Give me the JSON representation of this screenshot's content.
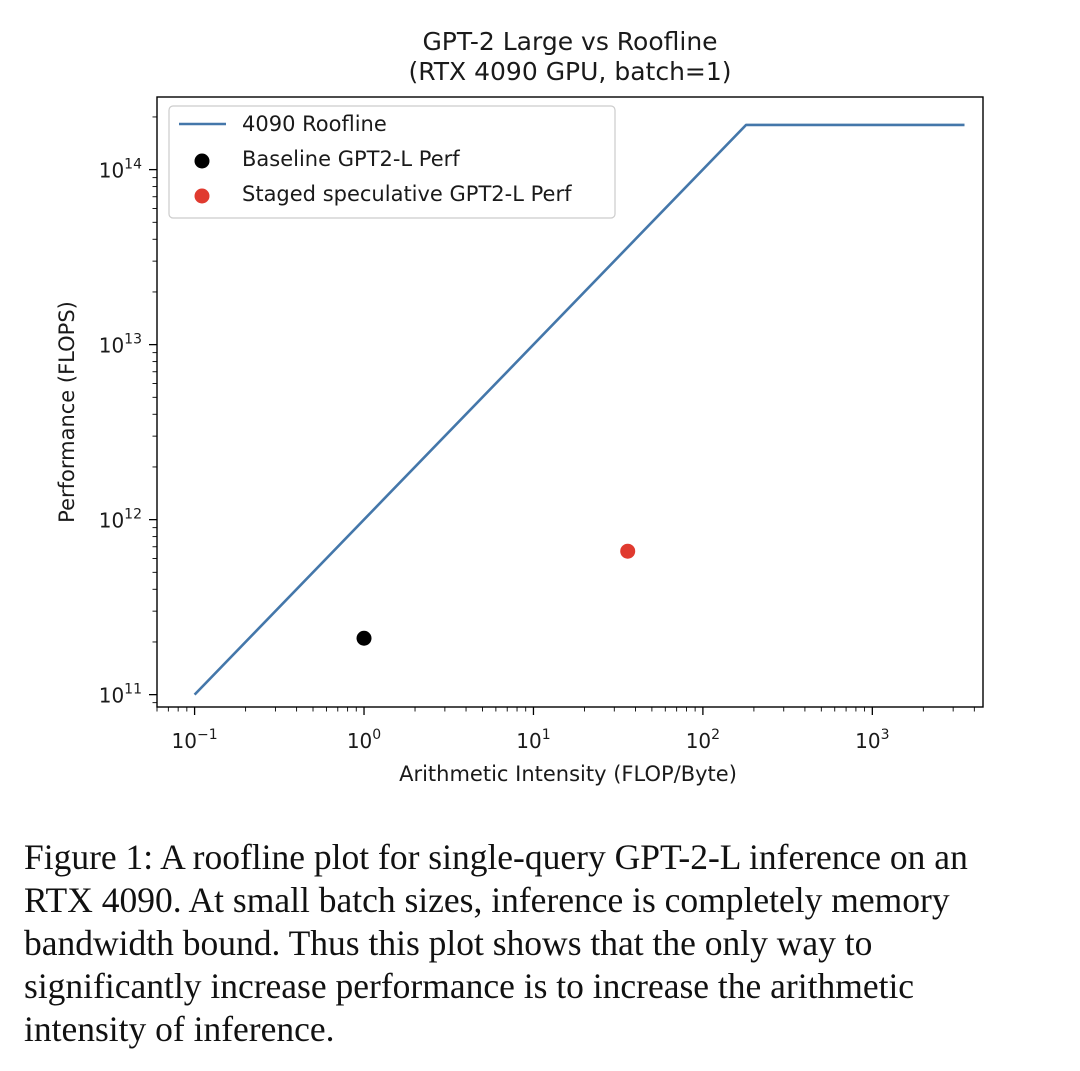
{
  "chart_data": {
    "type": "line",
    "title": [
      "GPT-2 Large vs Roofline",
      "(RTX 4090 GPU, batch=1)"
    ],
    "xlabel": "Arithmetic Intensity (FLOP/Byte)",
    "ylabel": "Performance (FLOPS)",
    "xscale": "log",
    "yscale": "log",
    "xlim": [
      0.06,
      4500
    ],
    "ylim": [
      85000000000.0,
      260000000000000.0
    ],
    "x_ticks": [
      {
        "value": 0.1,
        "base": "10",
        "exp": "−1"
      },
      {
        "value": 1,
        "base": "10",
        "exp": "0"
      },
      {
        "value": 10,
        "base": "10",
        "exp": "1"
      },
      {
        "value": 100,
        "base": "10",
        "exp": "2"
      },
      {
        "value": 1000,
        "base": "10",
        "exp": "3"
      }
    ],
    "y_ticks": [
      {
        "value": 100000000000.0,
        "base": "10",
        "exp": "11"
      },
      {
        "value": 1000000000000.0,
        "base": "10",
        "exp": "12"
      },
      {
        "value": 10000000000000.0,
        "base": "10",
        "exp": "13"
      },
      {
        "value": 100000000000000.0,
        "base": "10",
        "exp": "14"
      }
    ],
    "series": [
      {
        "name": "4090 Roofline",
        "kind": "line",
        "color": "#4477aa",
        "x": [
          0.1,
          180,
          3500
        ],
        "y": [
          100000000000.0,
          180000000000000.0,
          180000000000000.0
        ]
      },
      {
        "name": "Baseline GPT2-L Perf",
        "kind": "point",
        "color": "#000000",
        "x": [
          1.0
        ],
        "y": [
          210000000000.0
        ]
      },
      {
        "name": "Staged speculative GPT2-L Perf",
        "kind": "point",
        "color": "#e03a2f",
        "x": [
          36
        ],
        "y": [
          660000000000.0
        ]
      }
    ],
    "legend_position": "top-left",
    "grid": false
  },
  "caption": {
    "lines": [
      "Figure 1: A roofline plot for single-query GPT-2-L inference on an",
      "RTX 4090. At small batch sizes, inference is completely memory",
      "bandwidth bound.  Thus this plot shows that the only way to",
      "significantly increase performance is to increase the arithmetic",
      "intensity of inference."
    ]
  }
}
